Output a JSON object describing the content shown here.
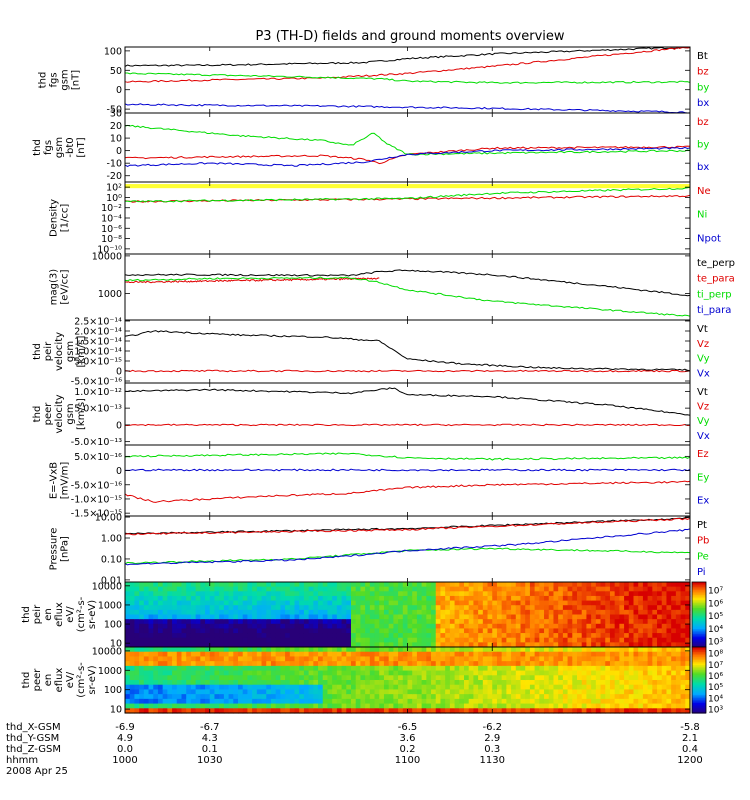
{
  "title": "P3 (TH-D) fields and ground moments overview",
  "colors": {
    "black": "#000000",
    "red": "#e00000",
    "green": "#00dc00",
    "blue": "#0000d0",
    "yellow": "#ffff33"
  },
  "chart_data": [
    {
      "type": "line",
      "ylabel": [
        "thd",
        "fgs",
        "gsm",
        "[nT]"
      ],
      "ylim": [
        -60,
        110
      ],
      "ticks": [
        "100",
        "50",
        "0",
        "-50"
      ],
      "tick_values": [
        100,
        50,
        0,
        -50
      ],
      "series": [
        {
          "name": "Bt",
          "color": "black",
          "x": [
            1000,
            1030,
            1070,
            1085,
            1100,
            1130,
            1200
          ],
          "y": [
            62,
            63,
            68,
            70,
            80,
            92,
            110
          ]
        },
        {
          "name": "bz",
          "color": "red",
          "x": [
            1000,
            1030,
            1070,
            1100,
            1130,
            1200
          ],
          "y": [
            20,
            25,
            30,
            42,
            60,
            110
          ]
        },
        {
          "name": "by",
          "color": "green",
          "x": [
            1000,
            1030,
            1070,
            1090,
            1100,
            1130,
            1200
          ],
          "y": [
            42,
            38,
            32,
            28,
            22,
            18,
            20
          ]
        },
        {
          "name": "bx",
          "color": "blue",
          "x": [
            1000,
            1030,
            1070,
            1100,
            1130,
            1200
          ],
          "y": [
            -38,
            -40,
            -42,
            -45,
            -48,
            -58
          ]
        }
      ]
    },
    {
      "type": "line",
      "ylabel": [
        "thd",
        "fgs",
        "gsm",
        "-bt0",
        "[nT]"
      ],
      "ylim": [
        -25,
        30
      ],
      "ticks": [
        "30",
        "20",
        "10",
        "0",
        "-10",
        "-20"
      ],
      "tick_values": [
        30,
        20,
        10,
        0,
        -10,
        -20
      ],
      "series": [
        {
          "name": "bz",
          "color": "red",
          "x": [
            1000,
            1030,
            1070,
            1085,
            1090,
            1100,
            1130,
            1200
          ],
          "y": [
            -6,
            -5,
            -4,
            -7,
            -10,
            -3,
            2,
            3
          ]
        },
        {
          "name": "by",
          "color": "green",
          "x": [
            1000,
            1020,
            1040,
            1070,
            1080,
            1088,
            1093,
            1100,
            1130,
            1200
          ],
          "y": [
            20,
            16,
            12,
            8,
            4,
            14,
            5,
            -3,
            -2,
            0
          ]
        },
        {
          "name": "bx",
          "color": "blue",
          "x": [
            1000,
            1030,
            1060,
            1085,
            1100,
            1130,
            1200
          ],
          "y": [
            -12,
            -10,
            -12,
            -9,
            -3,
            0,
            2
          ]
        }
      ]
    },
    {
      "type": "line",
      "ylog": true,
      "ylabel": [
        "Density",
        "[1/cc]"
      ],
      "ylim": [
        -11,
        3
      ],
      "ticks": [
        "10²",
        "10⁰",
        "10⁻²",
        "10⁻⁴",
        "10⁻⁶",
        "10⁻⁸",
        "10⁻¹⁰"
      ],
      "tick_values": [
        2,
        0,
        -2,
        -4,
        -6,
        -8,
        -10
      ],
      "band": {
        "color": "yellow",
        "y0": 1.8,
        "y1": 2.6
      },
      "series": [
        {
          "name": "Ne",
          "color": "red",
          "x": [
            1000,
            1100,
            1200
          ],
          "y": [
            -0.8,
            -0.3,
            0.3
          ]
        },
        {
          "name": "Ni",
          "color": "green",
          "x": [
            1000,
            1100,
            1130,
            1200
          ],
          "y": [
            -0.8,
            -0.2,
            0.8,
            1.8
          ]
        },
        {
          "name": "Npot",
          "color": "blue",
          "x": [],
          "y": []
        }
      ]
    },
    {
      "type": "line",
      "ylog": true,
      "ylabel": [
        "mag(3)",
        "[eV/cc]"
      ],
      "ylim": [
        2.3,
        4.05
      ],
      "ticks": [
        "10000",
        "1000"
      ],
      "tick_values": [
        4,
        3
      ],
      "series": [
        {
          "name": "te_perp",
          "color": "black",
          "x": [
            1000,
            1030,
            1080,
            1090,
            1100,
            1130,
            1170,
            1200
          ],
          "y": [
            3.5,
            3.5,
            3.48,
            3.58,
            3.62,
            3.5,
            3.2,
            2.95
          ]
        },
        {
          "name": "te_para",
          "color": "red",
          "x": [
            1000,
            1090
          ],
          "y": [
            3.3,
            3.4
          ]
        },
        {
          "name": "ti_perp",
          "color": "green",
          "x": [
            1000,
            1030,
            1080,
            1090,
            1100,
            1130,
            1200
          ],
          "y": [
            3.35,
            3.4,
            3.42,
            3.3,
            3.1,
            2.8,
            2.4
          ]
        },
        {
          "name": "ti_para",
          "color": "blue",
          "x": [],
          "y": []
        }
      ]
    },
    {
      "type": "line",
      "ylabel": [
        "thd",
        "peir",
        "velocity",
        "gsm",
        "[km/s]"
      ],
      "ylim": [
        -0.6,
        2.55
      ],
      "ticks": [
        "2.5×10⁻¹⁴",
        "2.0×10⁻¹⁴",
        "1.5×10⁻¹⁴",
        "1.0×10⁻¹⁴",
        "5.0×10⁻¹⁵",
        "0",
        "-5.0×10⁻¹⁶"
      ],
      "tick_values": [
        2.5,
        2.0,
        1.5,
        1.0,
        0.5,
        0,
        -0.5
      ],
      "series": [
        {
          "name": "Vt",
          "color": "black",
          "x": [
            1000,
            1010,
            1040,
            1070,
            1090,
            1100,
            1120,
            1150,
            1200
          ],
          "y": [
            1.7,
            2.0,
            1.8,
            1.7,
            1.5,
            0.6,
            0.35,
            0.15,
            0.05
          ]
        },
        {
          "name": "Vz",
          "color": "red",
          "x": [
            1000,
            1200
          ],
          "y": [
            0,
            0
          ]
        },
        {
          "name": "Vy",
          "color": "green",
          "x": [],
          "y": []
        },
        {
          "name": "Vx",
          "color": "blue",
          "x": [],
          "y": []
        }
      ]
    },
    {
      "type": "line",
      "ylabel": [
        "thd",
        "peer",
        "velocity",
        "gsm",
        "[km/s]"
      ],
      "ylim": [
        -0.6,
        1.25
      ],
      "ticks": [
        "1.0×10⁻¹²",
        "5.0×10⁻¹³",
        "0",
        "-5.0×10⁻¹³"
      ],
      "tick_values": [
        1.0,
        0.5,
        0,
        -0.5
      ],
      "series": [
        {
          "name": "Vt",
          "color": "black",
          "x": [
            1000,
            1030,
            1080,
            1095,
            1100,
            1130,
            1170,
            1200
          ],
          "y": [
            1.0,
            1.05,
            0.95,
            1.1,
            0.9,
            0.85,
            0.6,
            0.3
          ]
        },
        {
          "name": "Vz",
          "color": "red",
          "x": [
            1000,
            1200
          ],
          "y": [
            0,
            0
          ]
        },
        {
          "name": "Vy",
          "color": "green",
          "x": [],
          "y": []
        },
        {
          "name": "Vx",
          "color": "blue",
          "x": [],
          "y": []
        }
      ]
    },
    {
      "type": "line",
      "ylabel": [
        "E=-VxB",
        "[mV/m]"
      ],
      "ylim": [
        -1.6,
        0.9
      ],
      "ticks": [
        "5.0×10⁻¹⁶",
        "0",
        "-5.0×10⁻¹⁶",
        "-1.0×10⁻¹⁵",
        "-1.5×10⁻¹⁵"
      ],
      "tick_values": [
        0.5,
        0,
        -0.5,
        -1.0,
        -1.5
      ],
      "series": [
        {
          "name": "Ez",
          "color": "red",
          "x": [
            1000,
            1010,
            1050,
            1080,
            1100,
            1130,
            1200
          ],
          "y": [
            -0.85,
            -1.1,
            -0.9,
            -0.8,
            -0.6,
            -0.5,
            -0.4
          ]
        },
        {
          "name": "Ey",
          "color": "green",
          "x": [
            1000,
            1040,
            1080,
            1100,
            1130,
            1200
          ],
          "y": [
            0.5,
            0.55,
            0.6,
            0.45,
            0.4,
            0.45
          ]
        },
        {
          "name": "Ex",
          "color": "blue",
          "x": [
            1000,
            1200
          ],
          "y": [
            0.02,
            0.02
          ]
        }
      ]
    },
    {
      "type": "line",
      "ylog": true,
      "ylabel": [
        "Pressure",
        "[nPa]"
      ],
      "ylim": [
        -2.1,
        1.05
      ],
      "ticks": [
        "10.00",
        "1.00",
        "0.10",
        "0.01"
      ],
      "tick_values": [
        1,
        0,
        -1,
        -2
      ],
      "series": [
        {
          "name": "Pt",
          "color": "black",
          "x": [
            1000,
            1100,
            1200
          ],
          "y": [
            0.2,
            0.45,
            0.95
          ]
        },
        {
          "name": "Pb",
          "color": "red",
          "x": [
            1000,
            1100,
            1200
          ],
          "y": [
            0.18,
            0.4,
            0.92
          ]
        },
        {
          "name": "Pe",
          "color": "green",
          "x": [
            1000,
            1060,
            1080,
            1100,
            1130,
            1200
          ],
          "y": [
            -1.2,
            -1.0,
            -0.8,
            -0.6,
            -0.5,
            -0.7
          ]
        },
        {
          "name": "Pi",
          "color": "blue",
          "x": [
            1000,
            1060,
            1080,
            1100,
            1140,
            1200
          ],
          "y": [
            -1.25,
            -1.05,
            -0.85,
            -0.6,
            -0.3,
            0.4
          ]
        }
      ]
    },
    {
      "type": "heatmap",
      "ylabel": [
        "thd",
        "peir",
        "en",
        "eflux",
        "eV/",
        "(cm²-s-",
        "sr-eV)"
      ],
      "ylog": true,
      "ylim": [
        0.8,
        4.2
      ],
      "ticks": [
        "10000",
        "1000",
        "100",
        "10"
      ],
      "tick_values": [
        4,
        3,
        2,
        1
      ],
      "colorbar": {
        "ticks": [
          "10⁷",
          "10⁶",
          "10⁵",
          "10⁴",
          "10³"
        ],
        "tick_values": [
          7,
          6,
          5,
          4,
          3
        ],
        "range": [
          2.5,
          7.6
        ]
      }
    },
    {
      "type": "heatmap",
      "ylabel": [
        "thd",
        "peer",
        "en",
        "eflux",
        "eV/",
        "(cm²-s-",
        "sr-eV)"
      ],
      "ylog": true,
      "ylim": [
        0.8,
        4.2
      ],
      "ticks": [
        "10000",
        "1000",
        "100",
        "10"
      ],
      "tick_values": [
        4,
        3,
        2,
        1
      ],
      "colorbar": {
        "ticks": [
          "10⁸",
          "10⁷",
          "10⁶",
          "10⁵",
          "10⁴",
          "10³"
        ],
        "tick_values": [
          8,
          7,
          6,
          5,
          4,
          3
        ],
        "range": [
          2.6,
          8.5
        ]
      }
    }
  ],
  "xaxis": {
    "xlim": [
      1000,
      1200
    ],
    "ticks": [
      1000,
      1030,
      1100,
      1130,
      1200
    ],
    "rows": [
      {
        "label": "thd_X-GSM",
        "values": [
          "-6.9",
          "-6.7",
          "-6.5",
          "-6.2",
          "-5.8"
        ]
      },
      {
        "label": "thd_Y-GSM",
        "values": [
          "4.9",
          "4.3",
          "3.6",
          "2.9",
          "2.1"
        ]
      },
      {
        "label": "thd_Z-GSM",
        "values": [
          "0.0",
          "0.1",
          "0.2",
          "0.3",
          "0.4"
        ]
      },
      {
        "label": "hhmm",
        "values": [
          "1000",
          "1030",
          "1100",
          "1130",
          "1200"
        ]
      }
    ],
    "date": "2008 Apr 25"
  }
}
